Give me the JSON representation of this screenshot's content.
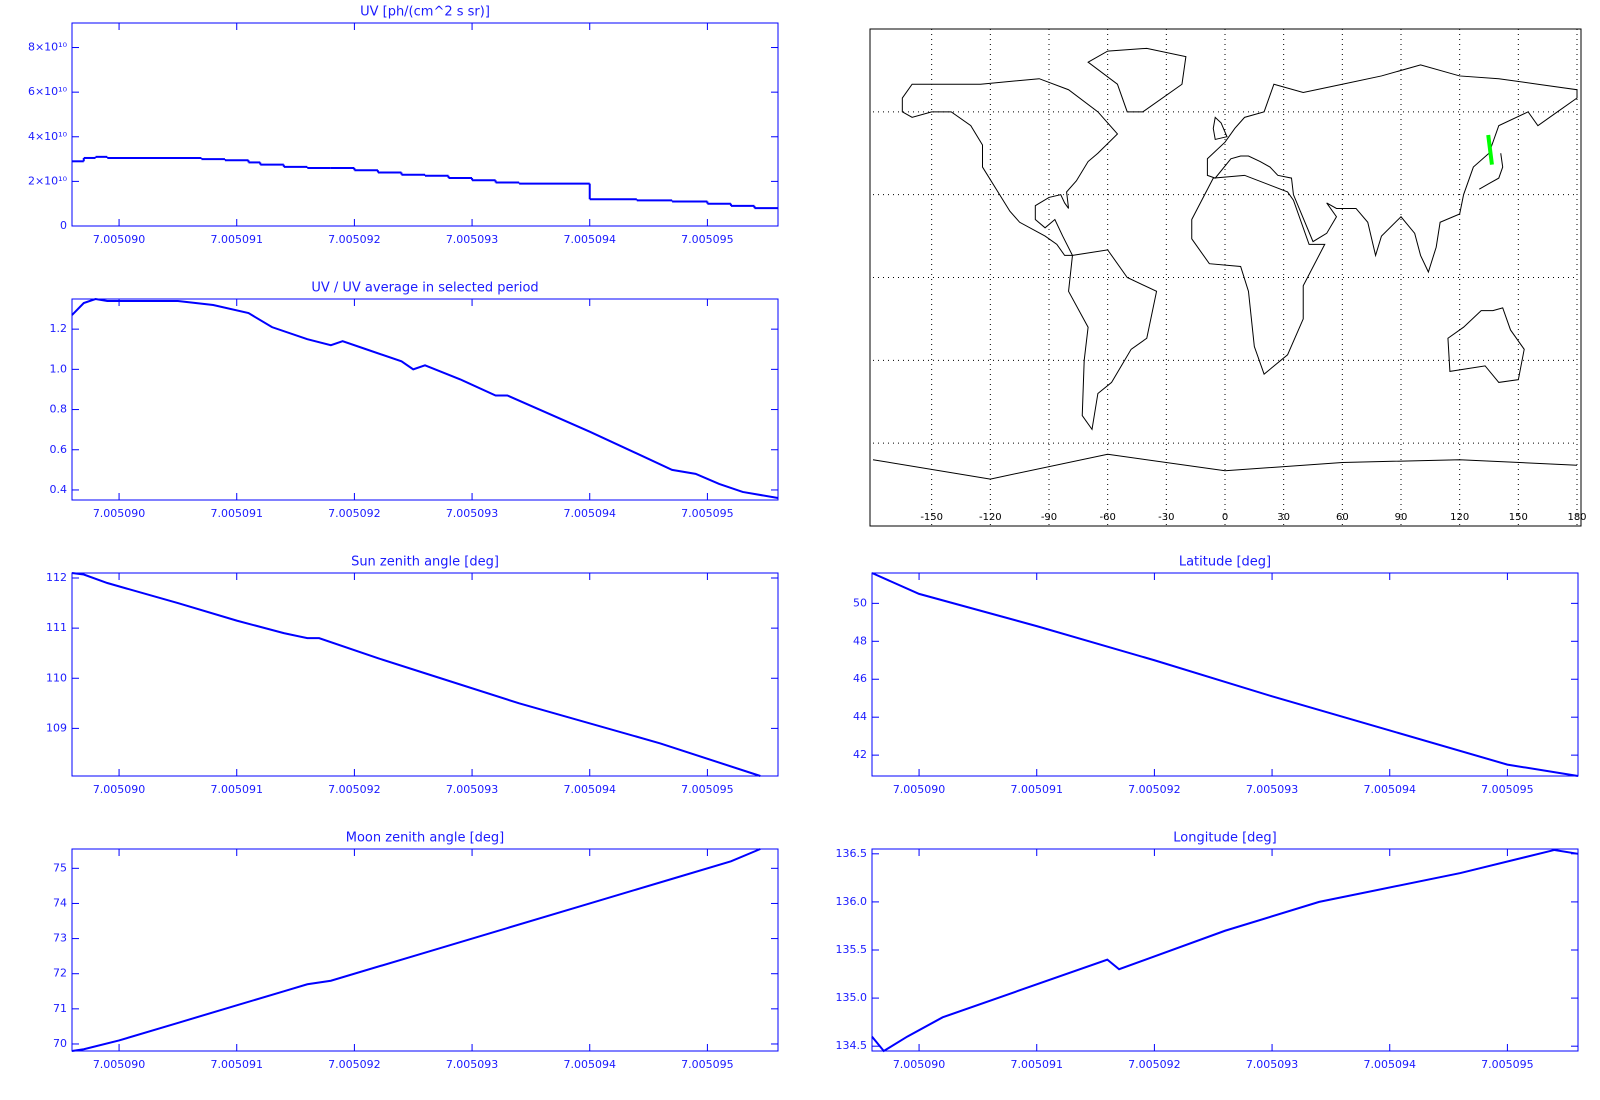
{
  "chart_data": [
    {
      "type": "line",
      "step": true,
      "title": "UV [ph/(cm^2 s sr)]",
      "color": "#0000ff",
      "x": [
        7.0050896,
        7.0050897,
        7.0050898,
        7.0050899,
        7.0050907,
        7.0050909,
        7.0050911,
        7.0050912,
        7.0050914,
        7.0050916,
        7.0050918,
        7.005092,
        7.0050922,
        7.0050924,
        7.0050926,
        7.0050928,
        7.005093,
        7.0050932,
        7.0050934,
        7.005094,
        7.0050944,
        7.0050947,
        7.005095,
        7.0050952,
        7.0050954
      ],
      "values": [
        29000000000.0,
        30500000000.0,
        31000000000.0,
        30500000000.0,
        30000000000.0,
        29500000000.0,
        28500000000.0,
        27500000000.0,
        26500000000.0,
        26000000000.0,
        26000000000.0,
        25000000000.0,
        24000000000.0,
        23000000000.0,
        22500000000.0,
        21500000000.0,
        20500000000.0,
        19500000000.0,
        19000000000.0,
        12000000000.0,
        11500000000.0,
        11000000000.0,
        10000000000.0,
        9000000000.0,
        8000000000.0
      ],
      "xlim": [
        7.0050896,
        7.0050956
      ],
      "xticks": [
        {
          "value": 7.00509,
          "label": "7.005090"
        },
        {
          "value": 7.005091,
          "label": "7.005091"
        },
        {
          "value": 7.005092,
          "label": "7.005092"
        },
        {
          "value": 7.005093,
          "label": "7.005093"
        },
        {
          "value": 7.005094,
          "label": "7.005094"
        },
        {
          "value": 7.005095,
          "label": "7.005095"
        }
      ],
      "ylim": [
        0,
        91000000000.0
      ],
      "yticks": [
        0,
        {
          "value": 20000000000.0,
          "label": "2×10¹⁰"
        },
        {
          "value": 40000000000.0,
          "label": "4×10¹⁰"
        },
        {
          "value": 60000000000.0,
          "label": "6×10¹⁰"
        },
        {
          "value": 80000000000.0,
          "label": "8×10¹⁰"
        }
      ]
    },
    {
      "type": "line",
      "title": "UV / UV average in selected period",
      "color": "#0000ff",
      "x": [
        7.0050896,
        7.0050897,
        7.0050898,
        7.0050899,
        7.0050905,
        7.0050908,
        7.0050911,
        7.0050913,
        7.0050916,
        7.0050918,
        7.0050919,
        7.0050921,
        7.0050924,
        7.0050925,
        7.0050926,
        7.0050929,
        7.0050932,
        7.0050933,
        7.005094,
        7.0050947,
        7.0050949,
        7.0050951,
        7.0050953,
        7.0050956
      ],
      "values": [
        1.27,
        1.33,
        1.35,
        1.34,
        1.34,
        1.32,
        1.28,
        1.21,
        1.15,
        1.12,
        1.14,
        1.1,
        1.04,
        1.0,
        1.02,
        0.95,
        0.87,
        0.87,
        0.69,
        0.5,
        0.48,
        0.43,
        0.39,
        0.36
      ],
      "xlim": [
        7.0050896,
        7.0050956
      ],
      "xticks": [
        {
          "value": 7.00509,
          "label": "7.005090"
        },
        {
          "value": 7.005091,
          "label": "7.005091"
        },
        {
          "value": 7.005092,
          "label": "7.005092"
        },
        {
          "value": 7.005093,
          "label": "7.005093"
        },
        {
          "value": 7.005094,
          "label": "7.005094"
        },
        {
          "value": 7.005095,
          "label": "7.005095"
        }
      ],
      "ylim": [
        0.35,
        1.35
      ],
      "yticks": [
        0.4,
        0.6,
        0.8,
        {
          "value": 1,
          "label": "1.0"
        },
        1.2
      ]
    },
    {
      "type": "map",
      "color": "#00ff00",
      "grid": true,
      "x": [
        134.6,
        136.5
      ],
      "values": [
        51.6,
        40.9
      ],
      "xlim": [
        -180,
        180
      ],
      "ylim": [
        -90,
        90
      ],
      "xticks": [
        -150,
        -120,
        -90,
        -60,
        -30,
        0,
        30,
        60,
        90,
        120,
        150,
        180
      ]
    },
    {
      "type": "line",
      "title": "Sun zenith angle [deg]",
      "color": "#0000ff",
      "x": [
        7.0050896,
        7.0050897,
        7.0050899,
        7.0050905,
        7.005091,
        7.0050914,
        7.0050916,
        7.0050917,
        7.0050922,
        7.0050926,
        7.0050934,
        7.0050946,
        7.00509545
      ],
      "values": [
        112.1,
        112.07,
        111.9,
        111.5,
        111.15,
        110.9,
        110.8,
        110.8,
        110.4,
        110.1,
        109.5,
        108.7,
        108.05
      ],
      "xlim": [
        7.0050896,
        7.0050956
      ],
      "xticks": [
        {
          "value": 7.00509,
          "label": "7.005090"
        },
        {
          "value": 7.005091,
          "label": "7.005091"
        },
        {
          "value": 7.005092,
          "label": "7.005092"
        },
        {
          "value": 7.005093,
          "label": "7.005093"
        },
        {
          "value": 7.005094,
          "label": "7.005094"
        },
        {
          "value": 7.005095,
          "label": "7.005095"
        }
      ],
      "ylim": [
        108.05,
        112.1
      ],
      "yticks": [
        109,
        110,
        111,
        112
      ]
    },
    {
      "type": "line",
      "title": "Latitude [deg]",
      "color": "#0000ff",
      "x": [
        7.0050896,
        7.00509,
        7.005091,
        7.005092,
        7.005093,
        7.005094,
        7.005095,
        7.0050956
      ],
      "values": [
        51.6,
        50.5,
        48.8,
        47.0,
        45.1,
        43.3,
        41.5,
        40.9
      ],
      "xlim": [
        7.0050896,
        7.0050956
      ],
      "xticks": [
        {
          "value": 7.00509,
          "label": "7.005090"
        },
        {
          "value": 7.005091,
          "label": "7.005091"
        },
        {
          "value": 7.005092,
          "label": "7.005092"
        },
        {
          "value": 7.005093,
          "label": "7.005093"
        },
        {
          "value": 7.005094,
          "label": "7.005094"
        },
        {
          "value": 7.005095,
          "label": "7.005095"
        }
      ],
      "ylim": [
        40.9,
        51.6
      ],
      "yticks": [
        42,
        44,
        46,
        48,
        50
      ]
    },
    {
      "type": "line",
      "title": "Moon zenith angle [deg]",
      "color": "#0000ff",
      "x": [
        7.0050896,
        7.0050897,
        7.00509,
        7.0050905,
        7.005091,
        7.0050914,
        7.0050916,
        7.0050918,
        7.0050925,
        7.0050933,
        7.005094,
        7.0050947,
        7.0050952,
        7.00509545
      ],
      "values": [
        69.8,
        69.85,
        70.1,
        70.6,
        71.1,
        71.5,
        71.7,
        71.8,
        72.5,
        73.3,
        74.0,
        74.7,
        75.2,
        75.55
      ],
      "xlim": [
        7.0050896,
        7.0050956
      ],
      "xticks": [
        {
          "value": 7.00509,
          "label": "7.005090"
        },
        {
          "value": 7.005091,
          "label": "7.005091"
        },
        {
          "value": 7.005092,
          "label": "7.005092"
        },
        {
          "value": 7.005093,
          "label": "7.005093"
        },
        {
          "value": 7.005094,
          "label": "7.005094"
        },
        {
          "value": 7.005095,
          "label": "7.005095"
        }
      ],
      "ylim": [
        69.8,
        75.55
      ],
      "yticks": [
        70,
        71,
        72,
        73,
        74,
        75
      ]
    },
    {
      "type": "line",
      "title": "Longitude [deg]",
      "color": "#0000ff",
      "x": [
        7.0050896,
        7.0050897,
        7.0050899,
        7.0050902,
        7.0050916,
        7.0050917,
        7.0050926,
        7.0050934,
        7.0050946,
        7.0050954,
        7.0050956
      ],
      "values": [
        134.6,
        134.45,
        134.6,
        134.8,
        135.4,
        135.3,
        135.7,
        136.0,
        136.3,
        136.54,
        136.5
      ],
      "xlim": [
        7.0050896,
        7.0050956
      ],
      "xticks": [
        {
          "value": 7.00509,
          "label": "7.005090"
        },
        {
          "value": 7.005091,
          "label": "7.005091"
        },
        {
          "value": 7.005092,
          "label": "7.005092"
        },
        {
          "value": 7.005093,
          "label": "7.005093"
        },
        {
          "value": 7.005094,
          "label": "7.005094"
        },
        {
          "value": 7.005095,
          "label": "7.005095"
        }
      ],
      "ylim": [
        134.45,
        136.55
      ],
      "yticks": [
        {
          "value": 135,
          "label": "135.0"
        },
        134.5,
        135.5,
        {
          "value": 136,
          "label": "136.0"
        },
        136.5
      ]
    }
  ]
}
